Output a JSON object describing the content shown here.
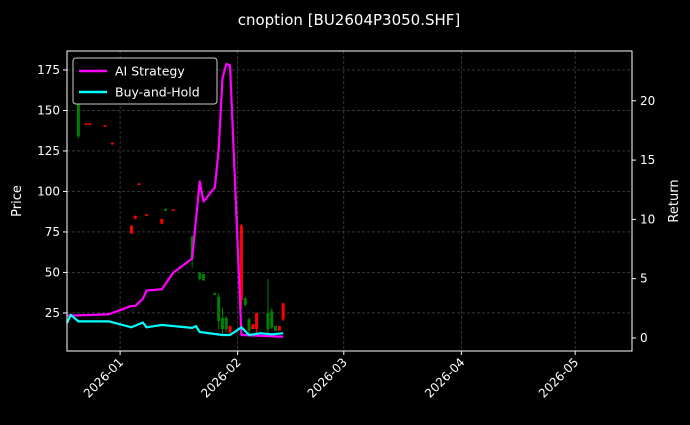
{
  "chart_data": {
    "type": "line",
    "title": "cnoption [BU2604P3050.SHF]",
    "ylabel": "Price",
    "y2label": "Return",
    "xlim": [
      "2025-12-18",
      "2026-05-16"
    ],
    "ylim": [
      1.5,
      186.7
    ],
    "y2lim": [
      -1.1,
      24.2
    ],
    "xticks": [
      "2026-01",
      "2026-02",
      "2026-03",
      "2026-04",
      "2026-05"
    ],
    "xtick_dates": [
      "2026-01-01",
      "2026-02-01",
      "2026-03-01",
      "2026-04-01",
      "2026-05-01"
    ],
    "yticks": [
      25,
      50,
      75,
      100,
      125,
      150,
      175
    ],
    "y2ticks": [
      0,
      5,
      10,
      15,
      20
    ],
    "grid": true,
    "legend": "top-left",
    "background": "#000000",
    "colors": {
      "up": "#008000",
      "down": "#ff0000",
      "strategy": "#ff00ff",
      "benchmark": "#00ffff"
    },
    "series": [
      {
        "name": "AI Strategy",
        "axis": "right",
        "color": "#ff00ff",
        "x": [
          "2025-12-18",
          "2025-12-21",
          "2025-12-29",
          "2026-01-04",
          "2026-01-05",
          "2026-01-07",
          "2026-01-08",
          "2026-01-12",
          "2026-01-15",
          "2026-01-20",
          "2026-01-22",
          "2026-01-23",
          "2026-01-26",
          "2026-01-27",
          "2026-01-28",
          "2026-01-29",
          "2026-01-30",
          "2026-02-02",
          "2026-02-13"
        ],
        "values": [
          1.9,
          1.9,
          2.0,
          2.7,
          2.7,
          3.3,
          4.0,
          4.1,
          5.5,
          6.7,
          13.2,
          11.5,
          12.7,
          15.9,
          21.9,
          23.1,
          23.0,
          0.25,
          0.1
        ]
      },
      {
        "name": "Buy-and-Hold",
        "axis": "right",
        "color": "#00ffff",
        "x": [
          "2025-12-18",
          "2025-12-19",
          "2025-12-21",
          "2025-12-29",
          "2026-01-04",
          "2026-01-07",
          "2026-01-08",
          "2026-01-12",
          "2026-01-20",
          "2026-01-21",
          "2026-01-22",
          "2026-01-28",
          "2026-01-30",
          "2026-02-02",
          "2026-02-04",
          "2026-02-07",
          "2026-02-10",
          "2026-02-13"
        ],
        "values": [
          1.27,
          1.94,
          1.4,
          1.4,
          0.9,
          1.3,
          0.9,
          1.1,
          0.85,
          1.0,
          0.5,
          0.25,
          0.25,
          0.9,
          0.25,
          0.4,
          0.3,
          0.4
        ]
      }
    ],
    "candles": [
      {
        "date": "2025-12-21",
        "open": 134,
        "high": 160,
        "low": 133,
        "close": 156
      },
      {
        "date": "2025-12-23",
        "open": 142,
        "high": 142,
        "low": 141,
        "close": 141
      },
      {
        "date": "2025-12-24",
        "open": 142,
        "high": 142,
        "low": 141,
        "close": 141
      },
      {
        "date": "2025-12-28",
        "open": 141,
        "high": 141,
        "low": 140,
        "close": 140
      },
      {
        "date": "2025-12-30",
        "open": 130,
        "high": 130,
        "low": 129,
        "close": 129
      },
      {
        "date": "2026-01-04",
        "open": 79,
        "high": 79,
        "low": 74,
        "close": 74
      },
      {
        "date": "2026-01-05",
        "open": 85,
        "high": 85,
        "low": 83,
        "close": 83
      },
      {
        "date": "2026-01-06",
        "open": 105,
        "high": 105,
        "low": 104,
        "close": 104
      },
      {
        "date": "2026-01-08",
        "open": 86,
        "high": 86,
        "low": 85,
        "close": 85
      },
      {
        "date": "2026-01-12",
        "open": 83,
        "high": 83,
        "low": 80,
        "close": 80
      },
      {
        "date": "2026-01-13",
        "open": 88,
        "high": 90,
        "low": 88,
        "close": 89
      },
      {
        "date": "2026-01-15",
        "open": 89,
        "high": 89,
        "low": 88,
        "close": 88
      },
      {
        "date": "2026-01-20",
        "open": 58,
        "high": 73,
        "low": 53,
        "close": 72
      },
      {
        "date": "2026-01-22",
        "open": 46,
        "high": 50,
        "low": 45,
        "close": 50
      },
      {
        "date": "2026-01-23",
        "open": 45,
        "high": 49,
        "low": 45,
        "close": 49
      },
      {
        "date": "2026-01-26",
        "open": 36,
        "high": 38,
        "low": 36,
        "close": 37
      },
      {
        "date": "2026-01-27",
        "open": 20,
        "high": 37,
        "low": 15,
        "close": 35
      },
      {
        "date": "2026-01-28",
        "open": 15,
        "high": 28,
        "low": 12,
        "close": 22
      },
      {
        "date": "2026-01-29",
        "open": 15,
        "high": 23,
        "low": 13,
        "close": 22
      },
      {
        "date": "2026-01-30",
        "open": 17,
        "high": 17,
        "low": 12,
        "close": 13
      },
      {
        "date": "2026-02-02",
        "open": 79,
        "high": 80,
        "low": 28,
        "close": 33
      },
      {
        "date": "2026-02-03",
        "open": 30,
        "high": 35,
        "low": 29,
        "close": 34
      },
      {
        "date": "2026-02-04",
        "open": 14,
        "high": 22,
        "low": 12,
        "close": 21
      },
      {
        "date": "2026-02-05",
        "open": 18,
        "high": 18,
        "low": 15,
        "close": 15
      },
      {
        "date": "2026-02-06",
        "open": 25,
        "high": 25,
        "low": 12,
        "close": 15
      },
      {
        "date": "2026-02-09",
        "open": 15,
        "high": 46,
        "low": 12,
        "close": 25
      },
      {
        "date": "2026-02-10",
        "open": 16,
        "high": 28,
        "low": 15,
        "close": 26
      },
      {
        "date": "2026-02-11",
        "open": 14,
        "high": 17,
        "low": 14,
        "close": 17
      },
      {
        "date": "2026-02-12",
        "open": 17,
        "high": 17,
        "low": 14,
        "close": 14
      },
      {
        "date": "2026-02-13",
        "open": 31,
        "high": 31,
        "low": 20,
        "close": 21
      }
    ]
  }
}
